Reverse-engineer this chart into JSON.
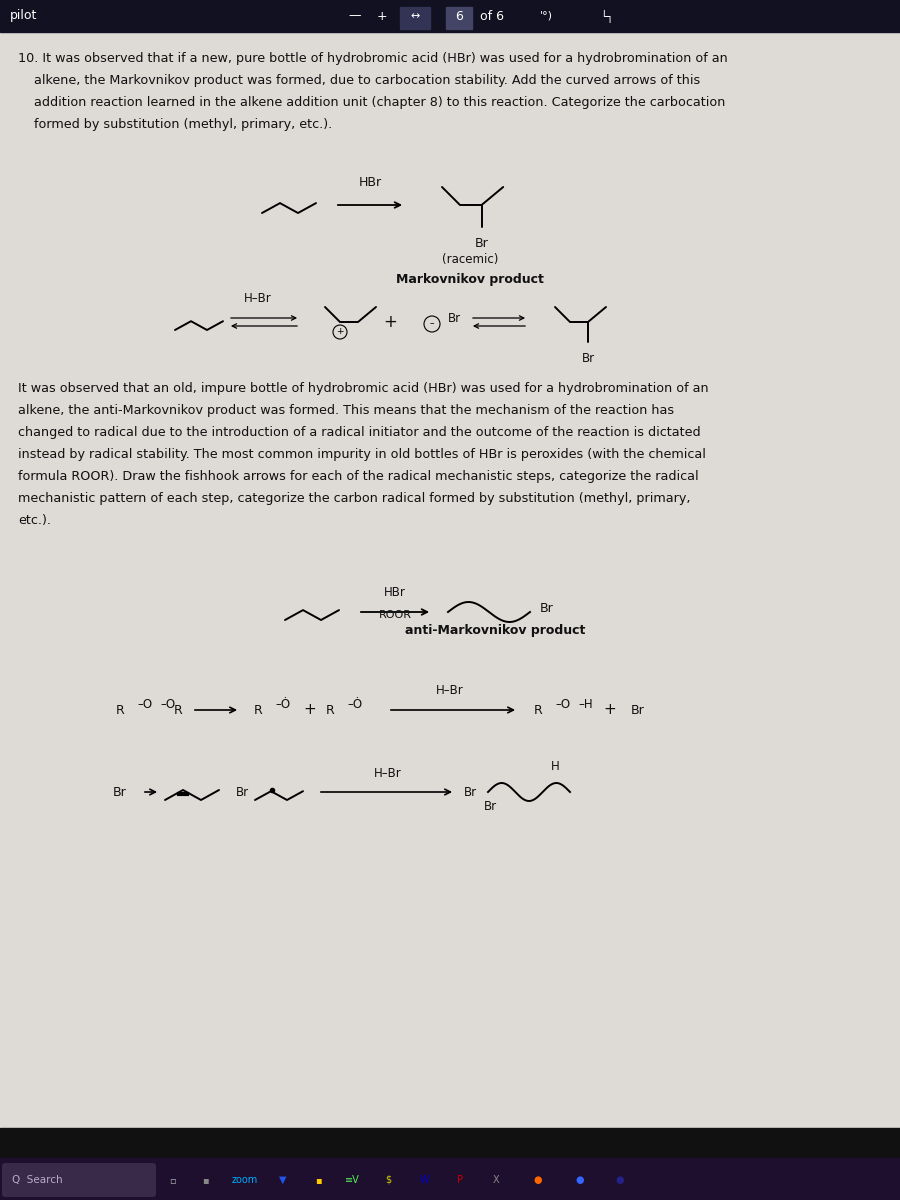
{
  "bg_color": "#cccac6",
  "content_bg": "#dedad6",
  "titlebar_color": "#111122",
  "taskbar_color": "#1e0f2e",
  "text_color": "#111111",
  "font_body": 9.2,
  "font_chem": 8.5,
  "p1_lines": [
    "10. It was observed that if a new, pure bottle of hydrobromic acid (HBr) was used for a hydrobromination of an",
    "    alkene, the Markovnikov product was formed, due to carbocation stability. Add the curved arrows of this",
    "    addition reaction learned in the alkene addition unit (chapter 8) to this reaction. Categorize the carbocation",
    "    formed by substitution (methyl, primary, etc.)."
  ],
  "p2_lines": [
    "It was observed that an old, impure bottle of hydrobromic acid (HBr) was used for a hydrobromination of an",
    "alkene, the anti-Markovnikov product was formed. This means that the mechanism of the reaction has",
    "changed to radical due to the introduction of a radical initiator and the outcome of the reaction is dictated",
    "instead by radical stability. The most common impurity in old bottles of HBr is peroxides (with the chemical",
    "formula ROOR). Draw the fishhook arrows for each of the radical mechanistic steps, categorize the radical",
    "mechanistic pattern of each step, categorize the carbon radical formed by substitution (methyl, primary,",
    "etc.)."
  ]
}
